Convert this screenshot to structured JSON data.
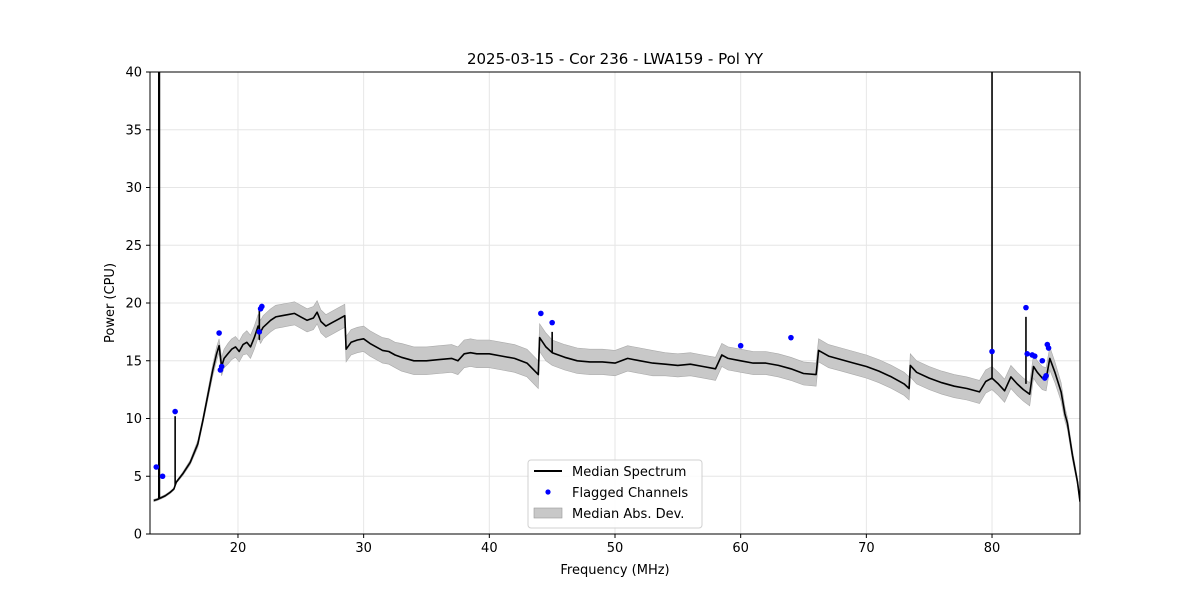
{
  "chart_data": {
    "type": "line",
    "title": "2025-03-15 - Cor 236 - LWA159 - Pol YY",
    "xlabel": "Frequency (MHz)",
    "ylabel": "Power (CPU)",
    "xlim": [
      13.0,
      87.0
    ],
    "ylim": [
      0,
      40
    ],
    "xticks": [
      20,
      30,
      40,
      50,
      60,
      70,
      80
    ],
    "yticks": [
      0,
      5,
      10,
      15,
      20,
      25,
      30,
      35,
      40
    ],
    "grid": true,
    "legend_position": "lower-center",
    "colors": {
      "median": "#000000",
      "flagged": "#0000ff",
      "mad": "#c8c8c8"
    },
    "series": [
      {
        "name": "Median Spectrum",
        "kind": "line",
        "x": [
          13.3,
          13.6,
          13.7,
          13.8,
          13.9,
          14.2,
          14.6,
          14.9,
          15.0,
          15.1,
          15.6,
          16.2,
          16.8,
          17.2,
          17.6,
          18.0,
          18.3,
          18.5,
          18.7,
          18.9,
          19.2,
          19.5,
          19.8,
          20.1,
          20.4,
          20.7,
          21.0,
          21.3,
          21.6,
          21.8,
          22.0,
          22.3,
          22.6,
          23.0,
          23.5,
          24.0,
          24.5,
          25.0,
          25.5,
          26.0,
          26.3,
          26.6,
          27.0,
          27.5,
          28.0,
          28.5,
          28.6,
          29.0,
          29.5,
          30.0,
          30.5,
          31.0,
          31.5,
          32.0,
          32.5,
          33.0,
          34.0,
          35.0,
          36.0,
          37.0,
          37.5,
          38.0,
          38.5,
          39.0,
          40.0,
          41.0,
          42.0,
          43.0,
          43.9,
          44.0,
          44.5,
          45.0,
          46.0,
          47.0,
          48.0,
          49.0,
          50.0,
          51.0,
          52.0,
          53.0,
          54.0,
          55.0,
          56.0,
          57.0,
          58.0,
          58.5,
          59.0,
          60.0,
          61.0,
          62.0,
          63.0,
          64.0,
          65.0,
          66.0,
          66.2,
          67.0,
          68.0,
          69.0,
          70.0,
          71.0,
          72.0,
          73.0,
          73.4,
          73.5,
          74.0,
          75.0,
          76.0,
          77.0,
          78.0,
          79.0,
          79.5,
          80.0,
          80.5,
          81.0,
          81.5,
          82.0,
          82.5,
          83.0,
          83.3,
          83.6,
          84.0,
          84.3,
          84.6,
          85.0,
          85.5,
          85.8,
          86.0,
          86.4,
          86.8,
          87.0
        ],
        "y": [
          2.9,
          3.0,
          3.05,
          3.1,
          3.15,
          3.3,
          3.6,
          3.9,
          4.2,
          4.5,
          5.2,
          6.2,
          7.8,
          9.8,
          12.0,
          14.2,
          15.6,
          16.3,
          14.5,
          15.2,
          15.6,
          16.0,
          16.2,
          15.8,
          16.4,
          16.6,
          16.2,
          17.0,
          18.0,
          17.5,
          17.9,
          18.2,
          18.5,
          18.8,
          18.9,
          19.0,
          19.1,
          18.8,
          18.5,
          18.7,
          19.2,
          18.4,
          18.0,
          18.3,
          18.6,
          18.9,
          16.0,
          16.6,
          16.8,
          16.9,
          16.5,
          16.2,
          15.9,
          15.8,
          15.5,
          15.3,
          15.0,
          15.0,
          15.1,
          15.2,
          15.0,
          15.6,
          15.7,
          15.6,
          15.6,
          15.4,
          15.2,
          14.8,
          13.8,
          17.0,
          16.2,
          15.7,
          15.3,
          15.0,
          14.9,
          14.9,
          14.8,
          15.2,
          15.0,
          14.8,
          14.7,
          14.6,
          14.7,
          14.5,
          14.3,
          15.5,
          15.2,
          15.0,
          14.8,
          14.8,
          14.6,
          14.3,
          13.9,
          13.8,
          15.9,
          15.4,
          15.1,
          14.8,
          14.5,
          14.1,
          13.6,
          13.0,
          12.6,
          14.6,
          14.0,
          13.5,
          13.1,
          12.8,
          12.6,
          12.3,
          13.2,
          13.5,
          13.0,
          12.4,
          13.6,
          13.0,
          12.5,
          12.1,
          14.5,
          14.0,
          13.5,
          13.4,
          15.2,
          14.0,
          12.3,
          10.4,
          9.6,
          6.8,
          4.5,
          2.8
        ]
      },
      {
        "name": "Flagged Channels",
        "kind": "scatter",
        "x": [
          13.5,
          14.0,
          15.0,
          18.5,
          18.7,
          18.6,
          21.8,
          21.9,
          21.7,
          44.1,
          45.0,
          60.0,
          64.0,
          80.0,
          82.7,
          82.8,
          83.2,
          83.4,
          84.0,
          84.2,
          84.3,
          84.4,
          84.5
        ],
        "y": [
          5.8,
          5.0,
          10.6,
          17.4,
          14.5,
          14.2,
          19.5,
          19.7,
          17.5,
          19.1,
          18.3,
          16.3,
          17.0,
          15.8,
          19.6,
          15.6,
          15.5,
          15.4,
          15.0,
          13.5,
          13.7,
          16.4,
          16.1
        ]
      },
      {
        "name": "Median Abs. Dev.",
        "kind": "band",
        "width": [
          0.1,
          0.1,
          0.1,
          0.1,
          0.1,
          0.1,
          0.1,
          0.1,
          0.1,
          0.1,
          0.15,
          0.2,
          0.3,
          0.3,
          0.4,
          0.5,
          0.6,
          0.6,
          0.8,
          0.8,
          0.9,
          0.9,
          0.9,
          0.9,
          0.9,
          1.0,
          1.0,
          1.0,
          1.0,
          1.0,
          1.0,
          1.0,
          1.0,
          1.0,
          1.0,
          1.0,
          1.0,
          1.0,
          1.0,
          1.0,
          1.0,
          1.0,
          1.0,
          1.0,
          1.0,
          1.0,
          1.1,
          1.1,
          1.1,
          1.1,
          1.1,
          1.1,
          1.1,
          1.1,
          1.1,
          1.2,
          1.2,
          1.2,
          1.2,
          1.2,
          1.2,
          1.2,
          1.2,
          1.2,
          1.2,
          1.2,
          1.2,
          1.2,
          1.2,
          1.2,
          1.2,
          1.1,
          1.1,
          1.1,
          1.1,
          1.1,
          1.1,
          1.1,
          1.1,
          1.1,
          1.0,
          1.0,
          1.0,
          1.0,
          1.0,
          1.0,
          1.0,
          1.0,
          1.0,
          1.0,
          1.0,
          1.0,
          1.0,
          1.0,
          1.0,
          1.0,
          1.0,
          1.0,
          1.0,
          1.0,
          1.0,
          1.0,
          1.0,
          1.0,
          1.0,
          1.0,
          1.0,
          1.0,
          1.0,
          1.0,
          1.0,
          1.0,
          1.0,
          1.0,
          1.0,
          1.0,
          1.0,
          1.0,
          1.0,
          1.0,
          1.0,
          1.0,
          1.0,
          0.9,
          0.8,
          0.6,
          0.5,
          0.4,
          0.3,
          0.2,
          0.1
        ]
      }
    ],
    "spikes": [
      {
        "x": 13.7,
        "y_low": 3.1,
        "y_high": 40
      },
      {
        "x": 13.75,
        "y_low": 3.1,
        "y_high": 40
      },
      {
        "x": 15.0,
        "y_low": 4.2,
        "y_high": 10.2
      },
      {
        "x": 21.7,
        "y_low": 16.8,
        "y_high": 19.5
      },
      {
        "x": 45.0,
        "y_low": 15.7,
        "y_high": 17.5
      },
      {
        "x": 80.0,
        "y_low": 13.5,
        "y_high": 40
      },
      {
        "x": 82.7,
        "y_low": 13.0,
        "y_high": 18.8
      }
    ],
    "legend": [
      "Median Spectrum",
      "Flagged Channels",
      "Median Abs. Dev."
    ]
  }
}
